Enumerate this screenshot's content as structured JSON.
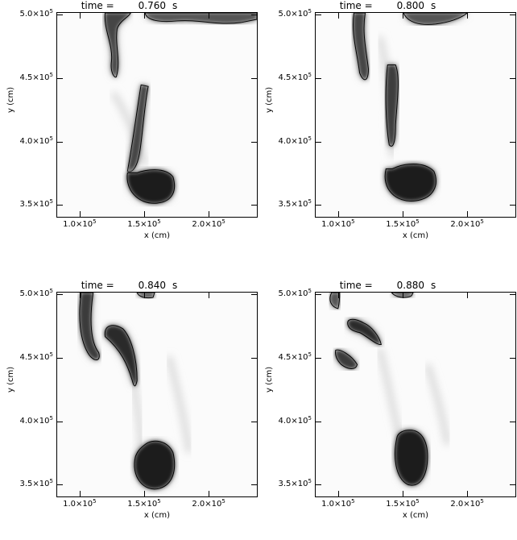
{
  "panels": [
    {
      "title_prefix": "time =",
      "time_value": "0.760",
      "time_unit": "s"
    },
    {
      "title_prefix": "time =",
      "time_value": "0.800",
      "time_unit": "s"
    },
    {
      "title_prefix": "time =",
      "time_value": "0.840",
      "time_unit": "s"
    },
    {
      "title_prefix": "time =",
      "time_value": "0.880",
      "time_unit": "s"
    }
  ],
  "axes": {
    "xlabel": "x (cm)",
    "ylabel": "y (cm)",
    "x_ticks": [
      {
        "mant": "1.0",
        "exp": "5"
      },
      {
        "mant": "1.5",
        "exp": "5"
      },
      {
        "mant": "2.0",
        "exp": "5"
      }
    ],
    "y_ticks": [
      {
        "mant": "5.0",
        "exp": "5"
      },
      {
        "mant": "4.5",
        "exp": "5"
      },
      {
        "mant": "4.0",
        "exp": "5"
      },
      {
        "mant": "3.5",
        "exp": "5"
      }
    ],
    "tick_base": "×10"
  },
  "colors": {
    "bubble_dark": "#222222",
    "bubble_mid": "#777777",
    "background": "#fbfbfb"
  }
}
